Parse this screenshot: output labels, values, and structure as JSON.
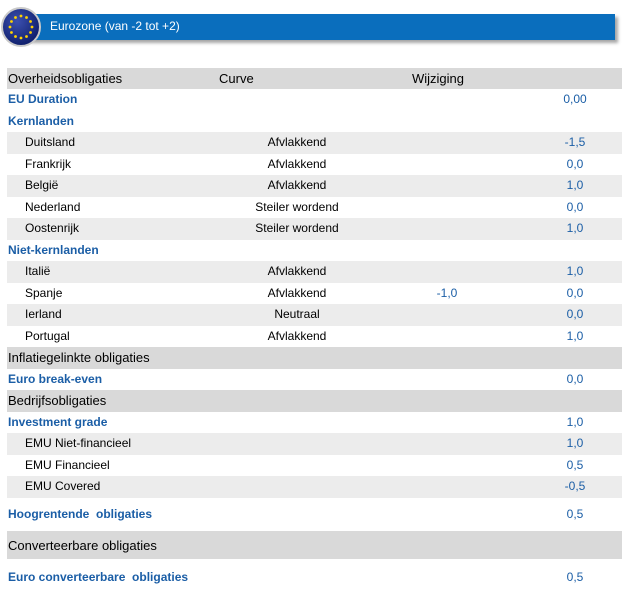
{
  "header": {
    "title": "Eurozone (van -2 tot +2)"
  },
  "columns": {
    "name": "Overheidsobligaties",
    "curve": "Curve",
    "change": "Wijziging"
  },
  "rows": [
    {
      "name": "EU Duration",
      "curve": "",
      "change": "",
      "value": "0,00"
    },
    {
      "name": "Kernlanden",
      "curve": "",
      "change": "",
      "value": ""
    },
    {
      "name": "Duitsland",
      "curve": "Afvlakkend",
      "change": "",
      "value": "-1,5"
    },
    {
      "name": "Frankrijk",
      "curve": "Afvlakkend",
      "change": "",
      "value": "0,0"
    },
    {
      "name": "België",
      "curve": "Afvlakkend",
      "change": "",
      "value": "1,0"
    },
    {
      "name": "Nederland",
      "curve": "Steiler wordend",
      "change": "",
      "value": "0,0"
    },
    {
      "name": "Oostenrijk",
      "curve": "Steiler wordend",
      "change": "",
      "value": "1,0"
    },
    {
      "name": "Niet-kernlanden",
      "curve": "",
      "change": "",
      "value": ""
    },
    {
      "name": "Italië",
      "curve": "Afvlakkend",
      "change": "",
      "value": "1,0"
    },
    {
      "name": "Spanje",
      "curve": "Afvlakkend",
      "change": "-1,0",
      "value": "0,0"
    },
    {
      "name": "Ierland",
      "curve": "Neutraal",
      "change": "",
      "value": "0,0"
    },
    {
      "name": "Portugal",
      "curve": "Afvlakkend",
      "change": "",
      "value": "1,0"
    },
    {
      "name": "Inflatiegelinkte obligaties",
      "curve": "",
      "change": "",
      "value": ""
    },
    {
      "name": "Euro break-even",
      "curve": "",
      "change": "",
      "value": "0,0"
    },
    {
      "name": "Bedrijfsobligaties",
      "curve": "",
      "change": "",
      "value": ""
    },
    {
      "name": "Investment grade",
      "curve": "",
      "change": "",
      "value": "1,0"
    },
    {
      "name": "EMU Niet-financieel",
      "curve": "",
      "change": "",
      "value": "1,0"
    },
    {
      "name": "EMU Financieel",
      "curve": "",
      "change": "",
      "value": "0,5"
    },
    {
      "name": "EMU Covered",
      "curve": "",
      "change": "",
      "value": "-0,5"
    },
    {
      "name": "Hoogrentende  obligaties",
      "curve": "",
      "change": "",
      "value": "0,5"
    },
    {
      "name": "Converteerbare obligaties",
      "curve": "",
      "change": "",
      "value": ""
    },
    {
      "name": "Euro converteerbare  obligaties",
      "curve": "",
      "change": "",
      "value": "0,5"
    }
  ],
  "colors": {
    "accent": "#0a6ebd",
    "value_blue": "#1b5ea6",
    "section_gray": "#d9d9d9",
    "row_gray": "#ececec"
  },
  "icons": {
    "flag": "eu-flag-icon"
  }
}
